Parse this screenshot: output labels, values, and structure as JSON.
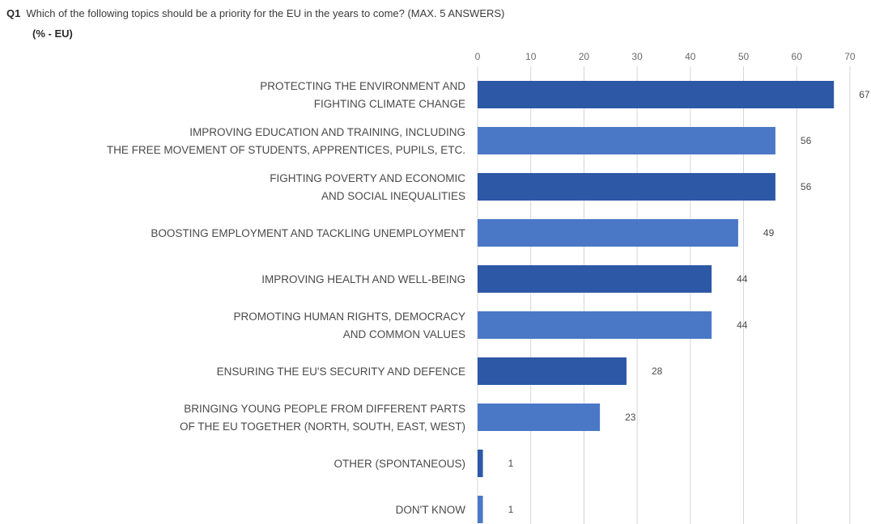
{
  "question": {
    "number": "Q1",
    "text": "Which of the following topics should be a priority for the EU in the years to come? (MAX. 5 ANSWERS)",
    "subtitle": "(% - EU)"
  },
  "chart_data": {
    "type": "bar",
    "orientation": "horizontal",
    "title": "Which of the following topics should be a priority for the EU in the years to come? (MAX. 5 ANSWERS)",
    "subtitle": "(% - EU)",
    "xlim": [
      0,
      70
    ],
    "ticks": [
      0,
      10,
      20,
      30,
      40,
      50,
      60,
      70
    ],
    "grid": true,
    "categories": [
      [
        "PROTECTING THE ENVIRONMENT AND",
        "FIGHTING CLIMATE CHANGE"
      ],
      [
        "IMPROVING EDUCATION AND TRAINING, INCLUDING",
        "THE FREE MOVEMENT OF STUDENTS, APPRENTICES, PUPILS, ETC."
      ],
      [
        "FIGHTING POVERTY AND ECONOMIC",
        "AND SOCIAL INEQUALITIES"
      ],
      [
        "BOOSTING EMPLOYMENT AND TACKLING UNEMPLOYMENT"
      ],
      [
        "IMPROVING HEALTH AND WELL-BEING"
      ],
      [
        "PROMOTING HUMAN RIGHTS, DEMOCRACY",
        "AND COMMON VALUES"
      ],
      [
        "ENSURING THE EU'S SECURITY AND DEFENCE"
      ],
      [
        "BRINGING YOUNG PEOPLE FROM DIFFERENT PARTS",
        "OF THE EU TOGETHER (NORTH, SOUTH, EAST, WEST)"
      ],
      [
        "OTHER (SPONTANEOUS)"
      ],
      [
        "DON'T KNOW"
      ]
    ],
    "values": [
      67,
      56,
      56,
      49,
      44,
      44,
      28,
      23,
      1,
      1
    ],
    "colors": {
      "dark": "#2d58a6",
      "light": "#4a78c6",
      "grid": "#d6d6d6",
      "label": "#4a4a4a",
      "tick": "#6a6a6a"
    }
  }
}
